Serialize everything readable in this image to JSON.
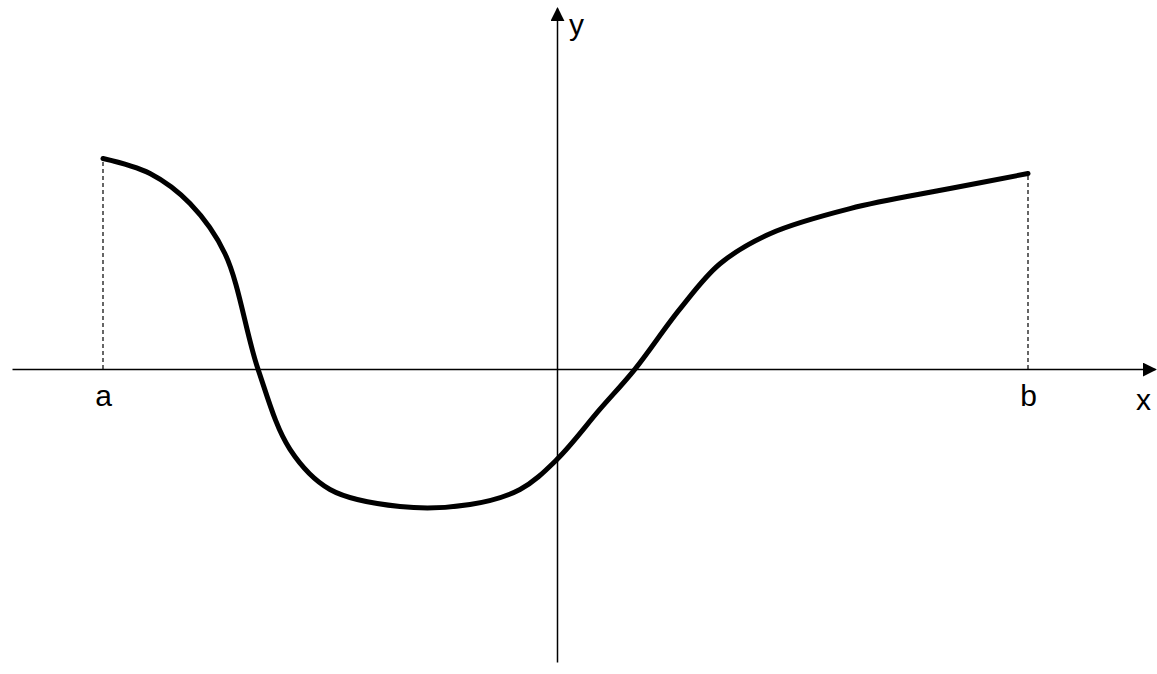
{
  "chart_data": {
    "type": "line",
    "x": [
      -4.54,
      -4.07,
      -3.67,
      -3.32,
      -2.99,
      -2.67,
      -2.27,
      -1.57,
      -0.87,
      -0.37,
      0,
      0.43,
      0.78,
      1.23,
      1.63,
      2.13,
      2.93,
      3.93,
      4.71
    ],
    "values": [
      2.1,
      1.95,
      1.65,
      1.15,
      0,
      -0.8,
      -1.2,
      -1.37,
      -1.35,
      -1.2,
      -0.9,
      -0.4,
      0,
      0.6,
      1.05,
      1.35,
      1.6,
      1.8,
      1.95
    ],
    "color": "#000000",
    "xlim": [
      -5.45,
      5.98
    ],
    "ylim": [
      -2.92,
      3.6
    ],
    "xticks": [
      {
        "value": -4.54,
        "label": "a"
      },
      {
        "value": 4.71,
        "label": "b"
      }
    ],
    "yticks": [],
    "tick_labels": "x",
    "x_label": "x",
    "y_label": "y"
  }
}
